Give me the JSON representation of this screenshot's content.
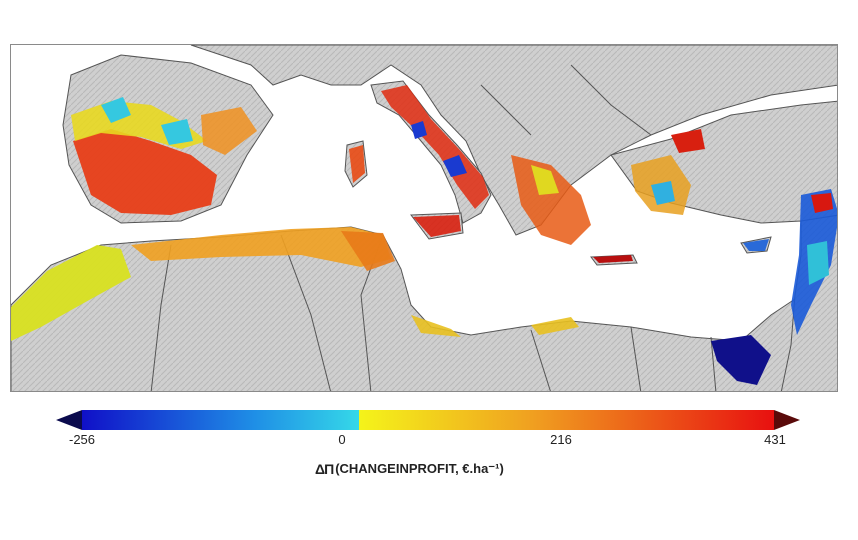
{
  "colorbar": {
    "min_label": "-256",
    "zero_label": "0",
    "mid_label": "216",
    "max_label": "431",
    "values": [
      -256,
      0,
      216,
      431
    ],
    "symbol": "ΔΠ",
    "title": "(CHANGEINPROFIT, €.ha⁻¹)",
    "colors": {
      "min_arrow": "#0b0b4d",
      "low": "#1010c8",
      "neg_mid": "#1f8fe6",
      "near_zero": "#35d8e8",
      "zero": "#f4f41a",
      "pos_mid": "#f0a020",
      "high": "#e81010",
      "max_arrow": "#5a0a0a"
    }
  },
  "map": {
    "land_color": "#cfcfcf",
    "sea_color": "#ffffff",
    "border_color": "#555555"
  }
}
